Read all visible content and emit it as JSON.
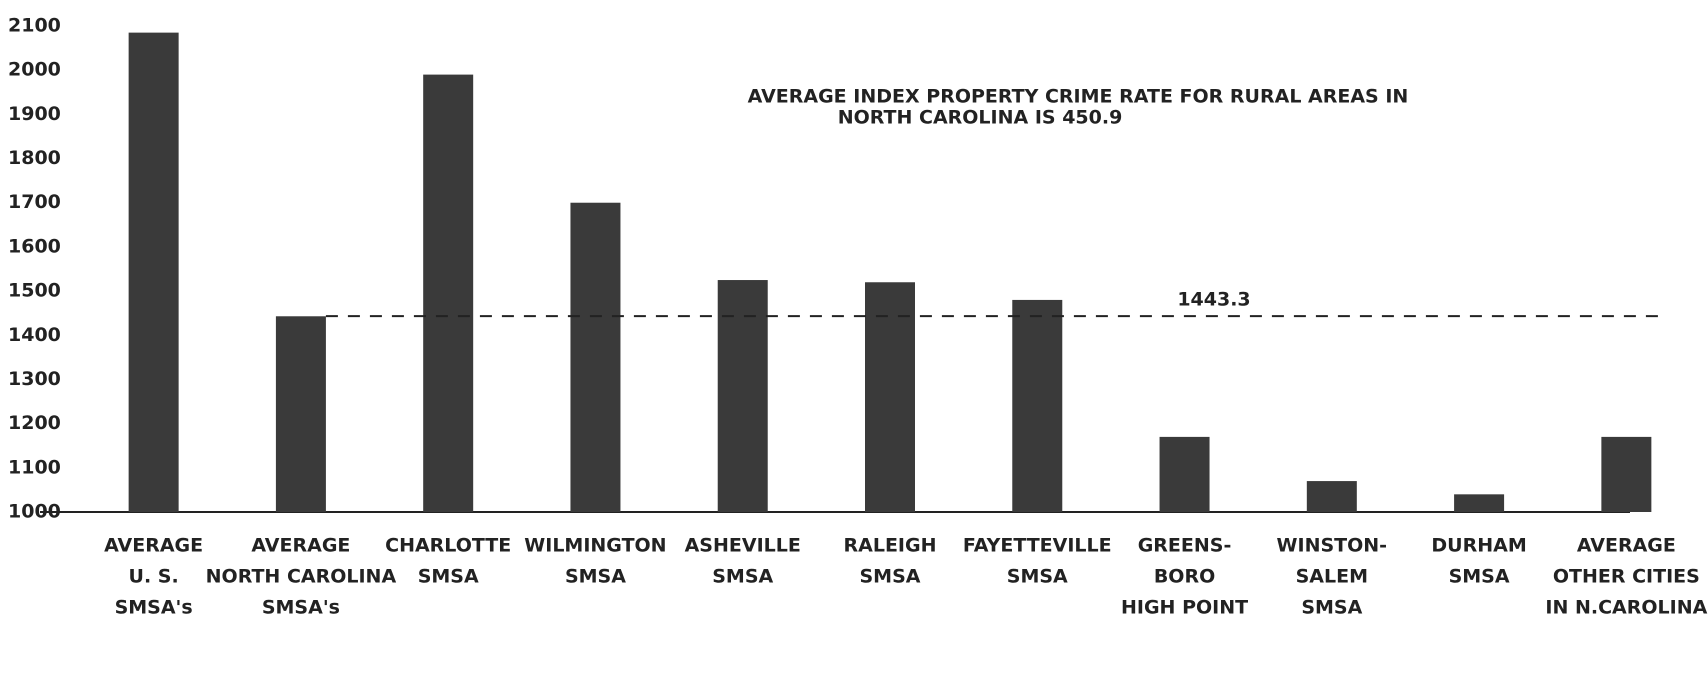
{
  "chart_data": {
    "type": "bar",
    "annotation": [
      "AVERAGE INDEX PROPERTY CRIME RATE FOR RURAL AREAS IN",
      "NORTH CAROLINA IS 450.9"
    ],
    "categories": [
      [
        "AVERAGE",
        "U. S.",
        "SMSA's"
      ],
      [
        "AVERAGE",
        "NORTH CAROLINA",
        "SMSA's"
      ],
      [
        "CHARLOTTE",
        "SMSA"
      ],
      [
        "WILMINGTON",
        "SMSA"
      ],
      [
        "ASHEVILLE",
        "SMSA"
      ],
      [
        "RALEIGH",
        "SMSA"
      ],
      [
        "FAYETTEVILLE",
        "SMSA"
      ],
      [
        "GREENS-",
        "BORO",
        "HIGH POINT"
      ],
      [
        "WINSTON-",
        "SALEM",
        "SMSA"
      ],
      [
        "DURHAM",
        "SMSA"
      ],
      [
        "AVERAGE",
        "OTHER CITIES",
        "IN N.CAROLINA"
      ]
    ],
    "values": [
      2085,
      1443,
      1990,
      1700,
      1525,
      1520,
      1480,
      1170,
      1070,
      1040,
      1170
    ],
    "color": "#3a3a3a",
    "reference_line": 1443.3,
    "ylim": [
      1000,
      2100
    ],
    "yticks": [
      1000,
      1100,
      1200,
      1300,
      1400,
      1500,
      1600,
      1700,
      1800,
      1900,
      2000,
      2100
    ],
    "grid": false
  }
}
